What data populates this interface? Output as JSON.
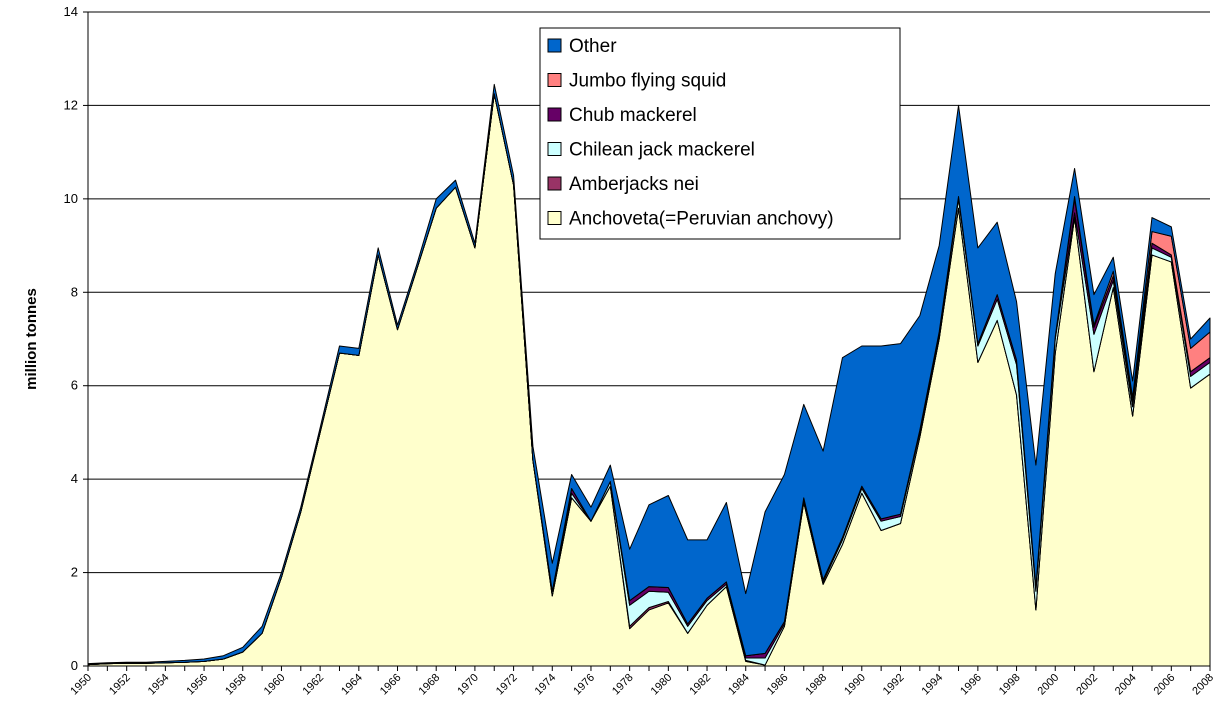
{
  "chart_data": {
    "type": "stacked_area",
    "y_label": "million tonnes",
    "x": [
      1950,
      1951,
      1952,
      1953,
      1954,
      1955,
      1956,
      1957,
      1958,
      1959,
      1960,
      1961,
      1962,
      1963,
      1964,
      1965,
      1966,
      1967,
      1968,
      1969,
      1970,
      1971,
      1972,
      1973,
      1974,
      1975,
      1976,
      1977,
      1978,
      1979,
      1980,
      1981,
      1982,
      1983,
      1984,
      1985,
      1986,
      1987,
      1988,
      1989,
      1990,
      1991,
      1992,
      1993,
      1994,
      1995,
      1996,
      1997,
      1998,
      1999,
      2000,
      2001,
      2002,
      2003,
      2004,
      2005,
      2006,
      2007,
      2008
    ],
    "xlim": [
      1950,
      2008
    ],
    "xticks": [
      1950,
      1952,
      1954,
      1956,
      1958,
      1960,
      1962,
      1964,
      1966,
      1968,
      1970,
      1972,
      1974,
      1976,
      1978,
      1980,
      1982,
      1984,
      1986,
      1988,
      1990,
      1992,
      1994,
      1996,
      1998,
      2000,
      2002,
      2004,
      2006,
      2008
    ],
    "ylim": [
      0,
      14
    ],
    "yticks": [
      0,
      2,
      4,
      6,
      8,
      10,
      12,
      14
    ],
    "grid": true,
    "legend": "top",
    "series": [
      {
        "name": "Anchoveta(=Peruvian anchovy)",
        "color": "#ffffcc",
        "values": [
          0.03,
          0.05,
          0.06,
          0.06,
          0.07,
          0.08,
          0.1,
          0.15,
          0.3,
          0.7,
          1.9,
          3.3,
          5.0,
          6.7,
          6.65,
          8.8,
          7.2,
          8.5,
          9.8,
          10.25,
          8.95,
          12.25,
          10.3,
          4.4,
          1.5,
          3.6,
          3.1,
          3.85,
          0.8,
          1.2,
          1.35,
          0.7,
          1.3,
          1.7,
          0.1,
          0.02,
          0.85,
          3.5,
          1.75,
          2.6,
          3.7,
          2.9,
          3.05,
          4.9,
          7.0,
          9.8,
          6.5,
          7.4,
          5.8,
          1.2,
          6.7,
          9.6,
          6.3,
          8.1,
          5.35,
          8.8,
          8.65,
          5.95,
          6.25
        ]
      },
      {
        "name": "Amberjacks nei",
        "color": "#993366",
        "values": [
          0,
          0,
          0,
          0,
          0,
          0,
          0,
          0,
          0,
          0,
          0,
          0,
          0,
          0,
          0,
          0,
          0,
          0,
          0,
          0,
          0,
          0,
          0,
          0,
          0,
          0,
          0,
          0,
          0.05,
          0.05,
          0.03,
          0,
          0,
          0,
          0.02,
          0,
          0,
          0,
          0,
          0,
          0,
          0,
          0,
          0,
          0,
          0,
          0,
          0,
          0,
          0,
          0,
          0,
          0,
          0,
          0,
          0,
          0,
          0,
          0
        ]
      },
      {
        "name": "Chilean jack mackerel",
        "color": "#ccffff",
        "values": [
          0,
          0,
          0,
          0,
          0,
          0,
          0,
          0,
          0,
          0,
          0,
          0,
          0,
          0,
          0,
          0,
          0,
          0,
          0,
          0,
          0,
          0,
          0,
          0,
          0.1,
          0.1,
          0,
          0.1,
          0.45,
          0.35,
          0.2,
          0.15,
          0.1,
          0.05,
          0.05,
          0.15,
          0.05,
          0.05,
          0.05,
          0.1,
          0.1,
          0.2,
          0.15,
          0.1,
          0.1,
          0.2,
          0.35,
          0.45,
          0.65,
          0.4,
          0.3,
          0.1,
          0.8,
          0.15,
          0.2,
          0.15,
          0.1,
          0.25,
          0.25
        ]
      },
      {
        "name": "Chub mackerel",
        "color": "#660066",
        "values": [
          0,
          0,
          0,
          0,
          0,
          0,
          0,
          0,
          0,
          0,
          0,
          0,
          0,
          0,
          0,
          0,
          0,
          0,
          0,
          0,
          0,
          0,
          0,
          0,
          0,
          0.1,
          0,
          0,
          0.1,
          0.1,
          0.1,
          0.05,
          0.05,
          0.05,
          0.05,
          0.1,
          0.05,
          0.05,
          0.05,
          0.05,
          0.05,
          0.05,
          0.05,
          0.05,
          0.05,
          0.05,
          0.05,
          0.1,
          0.1,
          0.1,
          0.05,
          0.3,
          0.15,
          0.1,
          0.1,
          0.1,
          0.05,
          0.1,
          0.1
        ]
      },
      {
        "name": "Jumbo flying squid",
        "color": "#ff8080",
        "values": [
          0,
          0,
          0,
          0,
          0,
          0,
          0,
          0,
          0,
          0,
          0,
          0,
          0,
          0,
          0,
          0,
          0,
          0,
          0,
          0,
          0,
          0,
          0,
          0,
          0,
          0,
          0,
          0,
          0,
          0,
          0,
          0,
          0,
          0,
          0,
          0,
          0,
          0,
          0,
          0,
          0,
          0,
          0,
          0,
          0,
          0,
          0,
          0,
          0,
          0,
          0,
          0.05,
          0.05,
          0.1,
          0.1,
          0.25,
          0.4,
          0.5,
          0.55
        ]
      },
      {
        "name": "Other",
        "color": "#0066cc",
        "values": [
          0.02,
          0.02,
          0.02,
          0.02,
          0.03,
          0.04,
          0.05,
          0.07,
          0.1,
          0.15,
          0.1,
          0.1,
          0.1,
          0.15,
          0.15,
          0.15,
          0.1,
          0.1,
          0.2,
          0.15,
          0.1,
          0.2,
          0.2,
          0.3,
          0.6,
          0.3,
          0.3,
          0.35,
          1.1,
          1.75,
          1.97,
          1.8,
          1.25,
          1.7,
          1.33,
          3.03,
          3.15,
          2.0,
          2.75,
          3.85,
          3.0,
          3.7,
          3.65,
          2.45,
          1.85,
          1.95,
          2.05,
          1.55,
          1.25,
          2.6,
          1.35,
          0.6,
          0.65,
          0.3,
          0.35,
          0.3,
          0.2,
          0.2,
          0.3
        ]
      }
    ]
  }
}
